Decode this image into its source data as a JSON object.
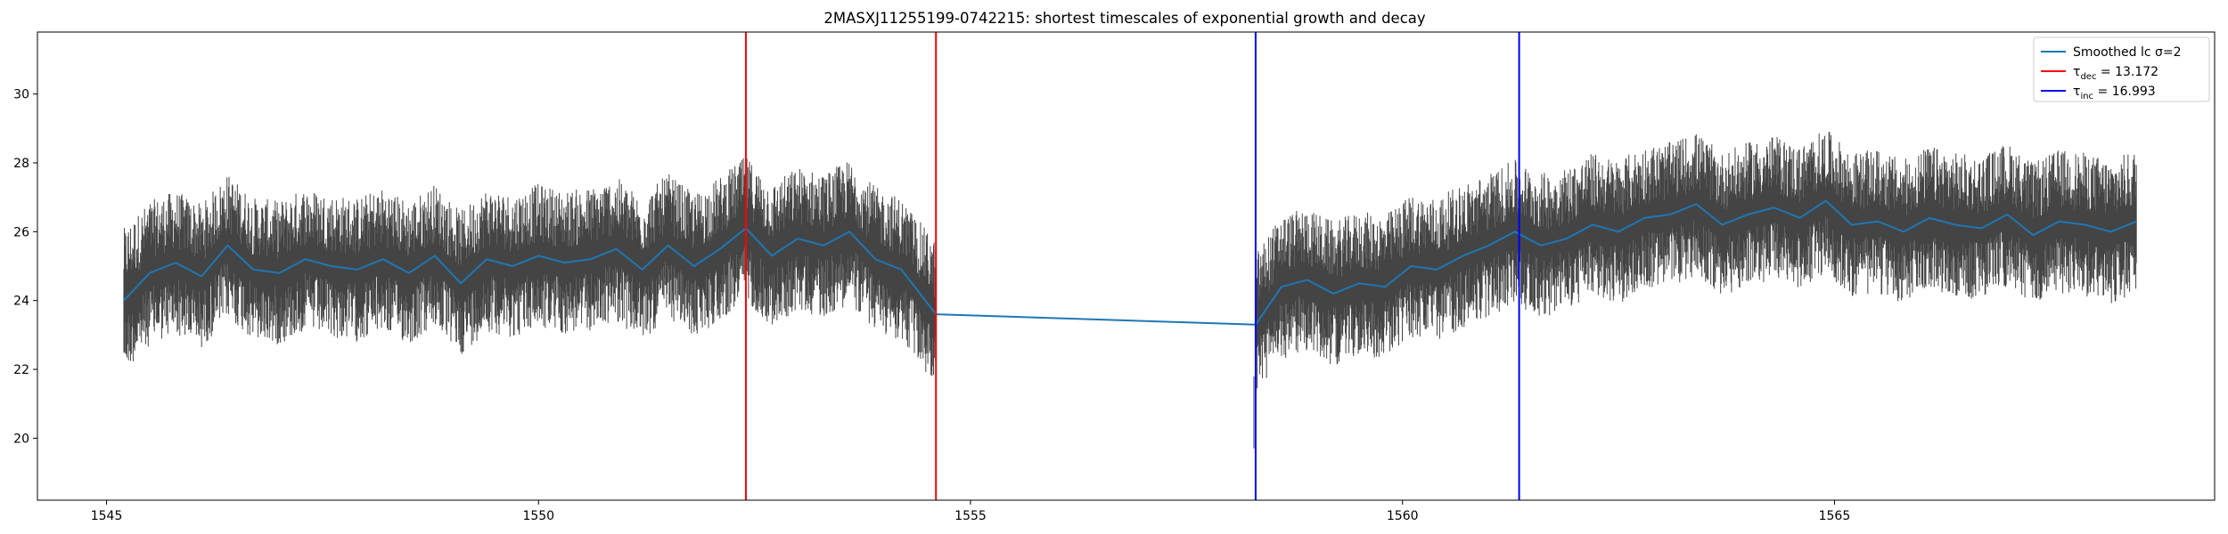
{
  "chart_data": {
    "type": "line",
    "title": "2MASXJ11255199-0742215: shortest timescales of exponential growth and decay",
    "xlabel": "",
    "ylabel": "",
    "xlim": [
      1544.2,
      1569.4
    ],
    "ylim": [
      18.2,
      31.8
    ],
    "xticks": [
      1545,
      1550,
      1555,
      1560,
      1565
    ],
    "yticks": [
      20,
      22,
      24,
      26,
      28,
      30
    ],
    "grid": false,
    "legend_position": "top-right",
    "segments": [
      [
        1545.2,
        1554.6
      ],
      [
        1558.3,
        1568.5
      ]
    ],
    "errorbar_color": "#3a3a3a",
    "series": [
      {
        "name": "Smoothed lc σ=2",
        "color": "#1f77b4",
        "x": [
          1545.2,
          1545.5,
          1545.8,
          1546.1,
          1546.4,
          1546.7,
          1547.0,
          1547.3,
          1547.6,
          1547.9,
          1548.2,
          1548.5,
          1548.8,
          1549.1,
          1549.4,
          1549.7,
          1550.0,
          1550.3,
          1550.6,
          1550.9,
          1551.2,
          1551.5,
          1551.8,
          1552.1,
          1552.4,
          1552.7,
          1553.0,
          1553.3,
          1553.6,
          1553.9,
          1554.2,
          1554.6,
          1558.3,
          1558.6,
          1558.9,
          1559.2,
          1559.5,
          1559.8,
          1560.1,
          1560.4,
          1560.7,
          1561.0,
          1561.3,
          1561.6,
          1561.9,
          1562.2,
          1562.5,
          1562.8,
          1563.1,
          1563.4,
          1563.7,
          1564.0,
          1564.3,
          1564.6,
          1564.9,
          1565.2,
          1565.5,
          1565.8,
          1566.1,
          1566.4,
          1566.7,
          1567.0,
          1567.3,
          1567.6,
          1567.9,
          1568.2,
          1568.5
        ],
        "y": [
          24.0,
          24.8,
          25.1,
          24.7,
          25.6,
          24.9,
          24.8,
          25.2,
          25.0,
          24.9,
          25.2,
          24.8,
          25.3,
          24.5,
          25.2,
          25.0,
          25.3,
          25.1,
          25.2,
          25.5,
          24.9,
          25.6,
          25.0,
          25.5,
          26.1,
          25.3,
          25.8,
          25.6,
          26.0,
          25.2,
          24.9,
          23.6,
          23.3,
          24.4,
          24.6,
          24.2,
          24.5,
          24.4,
          25.0,
          24.9,
          25.3,
          25.6,
          26.0,
          25.6,
          25.8,
          26.2,
          26.0,
          26.4,
          26.5,
          26.8,
          26.2,
          26.5,
          26.7,
          26.4,
          26.9,
          26.2,
          26.3,
          26.0,
          26.4,
          26.2,
          26.1,
          26.5,
          25.9,
          26.3,
          26.2,
          26.0,
          26.3
        ]
      },
      {
        "name": "τdec = 13.172",
        "label_main": "τ",
        "label_sub": "dec",
        "label_rest": " = 13.172",
        "color": "#ff0000",
        "vlines": [
          1552.4,
          1554.6
        ]
      },
      {
        "name": "τinc = 16.993",
        "label_main": "τ",
        "label_sub": "inc",
        "label_rest": " = 16.993",
        "color": "#0000ff",
        "vlines": [
          1558.3,
          1561.35
        ]
      }
    ],
    "annotations": [
      {
        "type": "dip",
        "x": 1558.28,
        "y_low": 19.7,
        "y_high": 21.8
      }
    ]
  }
}
